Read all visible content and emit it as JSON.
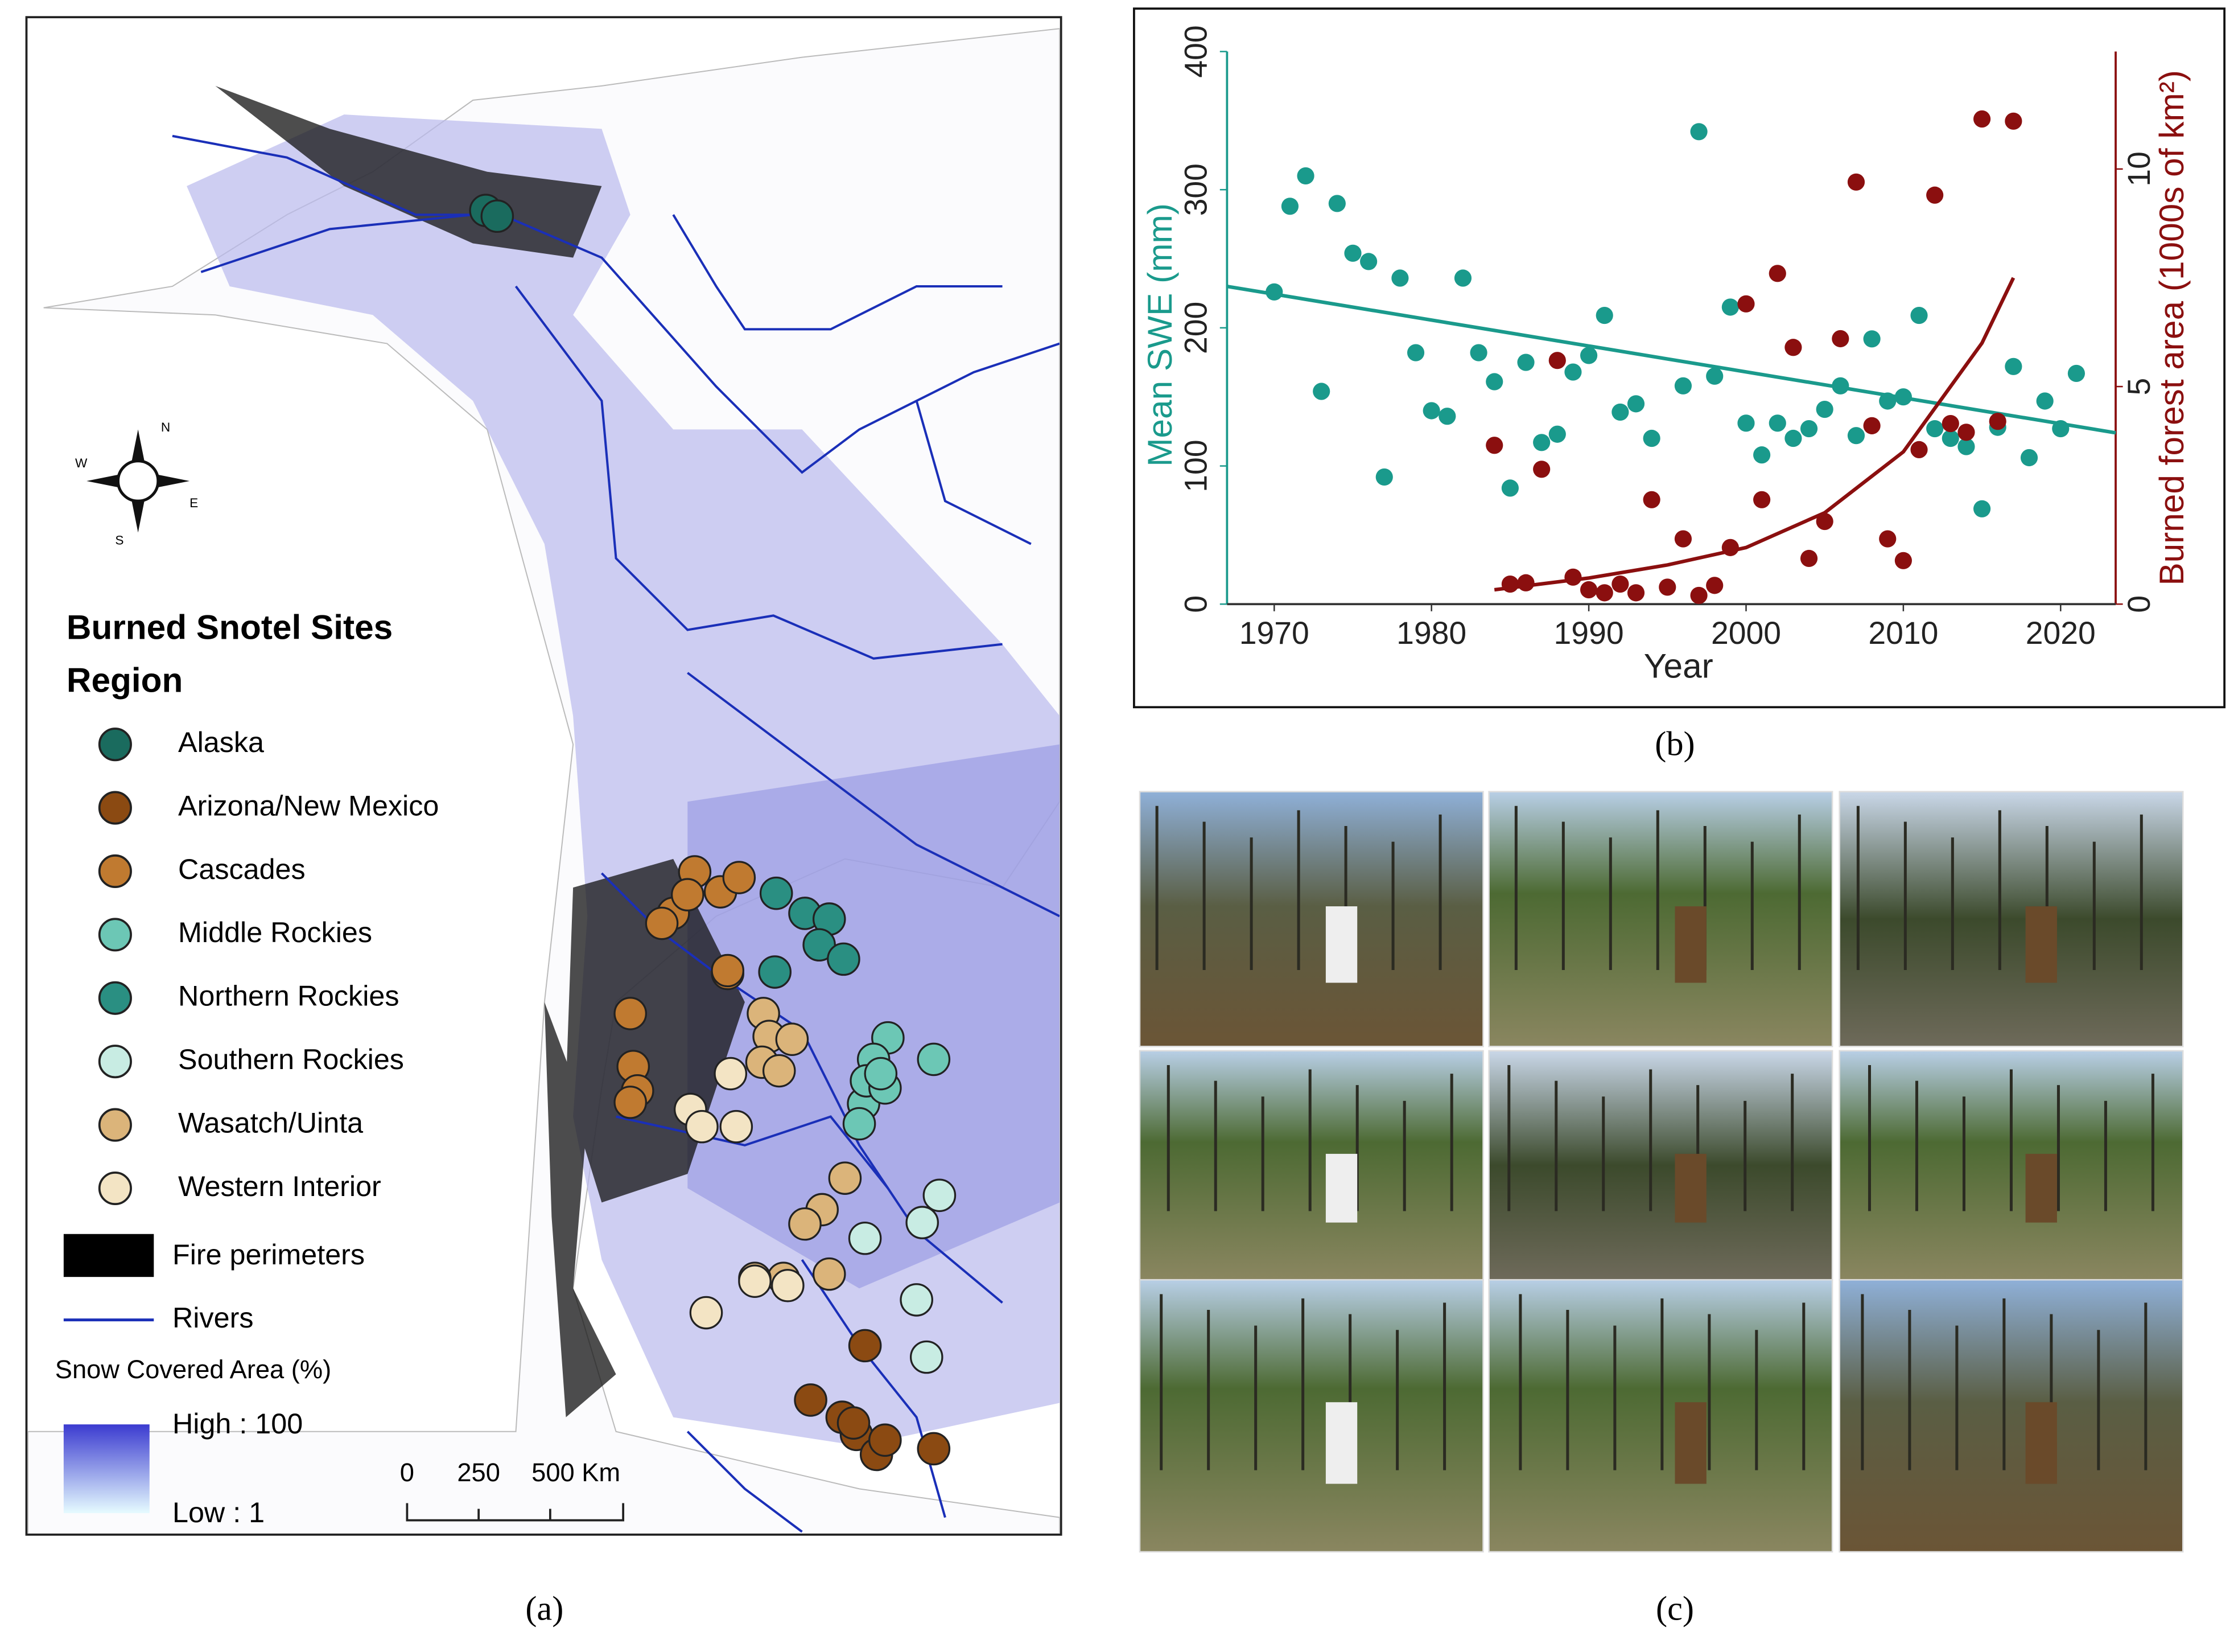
{
  "chart_data": {
    "type": "scatter",
    "xlabel": "Year",
    "ylabel": "Mean SWE (mm)",
    "y2label": "Burned forest area (1000s of km²)",
    "xlim": [
      1967,
      2023.5
    ],
    "xticks": [
      1970,
      1980,
      1990,
      2000,
      2010,
      2020
    ],
    "ylim": [
      0,
      400
    ],
    "yticks": [
      0,
      100,
      200,
      300,
      400
    ],
    "y2lim": [
      0,
      12.7
    ],
    "y2ticks": [
      0,
      5,
      10
    ],
    "series": [
      {
        "color": "#1a9a8c",
        "axis": "y",
        "x": [
          1970,
          1971,
          1972,
          1973,
          1974,
          1975,
          1976,
          1977,
          1978,
          1979,
          1980,
          1981,
          1982,
          1983,
          1984,
          1985,
          1986,
          1987,
          1988,
          1989,
          1990,
          1991,
          1992,
          1993,
          1994,
          1996,
          1997,
          1998,
          1999,
          2000,
          2001,
          2002,
          2003,
          2004,
          2005,
          2006,
          2007,
          2008,
          2009,
          2010,
          2011,
          2012,
          2013,
          2014,
          2015,
          2016,
          2017,
          2018,
          2019,
          2020,
          2021
        ],
        "values": [
          226,
          288,
          310,
          154,
          290,
          254,
          248,
          92,
          236,
          182,
          140,
          136,
          236,
          182,
          161,
          84,
          175,
          117,
          123,
          168,
          180,
          209,
          139,
          145,
          120,
          158,
          342,
          165,
          215,
          131,
          108,
          131,
          120,
          127,
          141,
          158,
          122,
          192,
          147,
          150,
          209,
          127,
          120,
          114,
          69,
          128,
          172,
          106,
          147,
          127,
          167
        ]
      },
      {
        "color": "#8b0f0f",
        "axis": "y2",
        "x": [
          1984,
          1985,
          1986,
          1987,
          1988,
          1989,
          1990,
          1991,
          1992,
          1993,
          1994,
          1995,
          1996,
          1997,
          1998,
          1999,
          2000,
          2001,
          2002,
          2003,
          2004,
          2005,
          2006,
          2007,
          2008,
          2009,
          2010,
          2011,
          2012,
          2013,
          2014,
          2015,
          2016,
          2017
        ],
        "values": [
          3.65,
          0.46,
          0.49,
          3.1,
          5.6,
          0.62,
          0.33,
          0.26,
          0.46,
          0.26,
          2.4,
          0.39,
          1.5,
          0.2,
          0.43,
          1.3,
          6.9,
          2.4,
          7.6,
          5.9,
          1.05,
          1.9,
          6.1,
          9.7,
          4.1,
          1.5,
          1.0,
          3.55,
          9.4,
          4.15,
          3.95,
          11.15,
          4.2,
          11.1
        ]
      }
    ],
    "trend_lines": [
      {
        "color": "#1a9a8c",
        "axis": "y",
        "x": [
          1967,
          2023.5
        ],
        "values": [
          230,
          124
        ]
      },
      {
        "color": "#8b0f0f",
        "axis": "y2",
        "x": [
          1984,
          1990,
          1995,
          2000,
          2005,
          2010,
          2015,
          2017
        ],
        "values": [
          0.33,
          0.6,
          0.9,
          1.3,
          2.1,
          3.5,
          6.0,
          7.5
        ]
      }
    ]
  },
  "map": {
    "legend_title": "Burned Snotel Sites",
    "legend_subtitle": "Region",
    "regions": [
      {
        "label": "Alaska",
        "color": "#1a6b5e"
      },
      {
        "label": "Arizona/New Mexico",
        "color": "#8b4a12"
      },
      {
        "label": "Cascades",
        "color": "#c07a30"
      },
      {
        "label": "Middle Rockies",
        "color": "#6cc7b5"
      },
      {
        "label": "Northern Rockies",
        "color": "#2a8f82"
      },
      {
        "label": "Southern Rockies",
        "color": "#c8ece3"
      },
      {
        "label": "Wasatch/Uinta",
        "color": "#dbb47a"
      },
      {
        "label": "Western Interior",
        "color": "#f3e4c4"
      }
    ],
    "fire_label": "Fire perimeters",
    "rivers_label": "Rivers",
    "snow_label": "Snow Covered Area (%)",
    "snow_high": "High : 100",
    "snow_low": "Low : 1",
    "scale": [
      "0",
      "250",
      "500 Km"
    ],
    "compass": [
      "N",
      "E",
      "S",
      "W"
    ]
  },
  "panel_labels": [
    "(a)",
    "(b)",
    "(c)"
  ]
}
